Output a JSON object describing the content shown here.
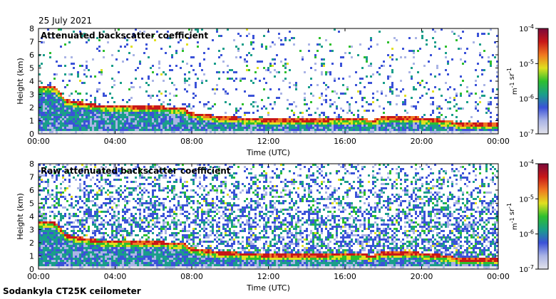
{
  "date": "25 July 2021",
  "site": "Sodankyla CT25K ceilometer",
  "colors": {
    "scale": [
      "#e3e3ea",
      "#aab4e6",
      "#3b52d8",
      "#1a9e8a",
      "#2ebf2e",
      "#e0e020",
      "#f07820",
      "#c81818",
      "#7a0a3a"
    ],
    "background": "#ffffff"
  },
  "chart_data": [
    {
      "type": "heatmap",
      "title": "Attenuated backscatter coefficient",
      "xlabel": "Time (UTC)",
      "ylabel": "Height (km)",
      "xlim": [
        0,
        24
      ],
      "ylim": [
        0,
        8
      ],
      "x_ticks": [
        0,
        4,
        8,
        12,
        16,
        20,
        24
      ],
      "x_tick_labels": [
        "00:00",
        "04:00",
        "08:00",
        "12:00",
        "16:00",
        "20:00",
        "00:00"
      ],
      "y_ticks": [
        0,
        1,
        2,
        3,
        4,
        5,
        6,
        7,
        8
      ],
      "y_tick_labels": [
        "0",
        "1",
        "2",
        "3",
        "4",
        "5",
        "6",
        "7",
        "8"
      ],
      "noise_level": 0.25,
      "layer_top_km": [
        [
          0,
          3.6
        ],
        [
          0.8,
          3.6
        ],
        [
          1.1,
          3.2
        ],
        [
          1.4,
          2.6
        ],
        [
          3,
          2.2
        ],
        [
          7.5,
          2.0
        ],
        [
          8,
          1.6
        ],
        [
          9.5,
          1.3
        ],
        [
          12.5,
          1.1
        ],
        [
          17,
          1.2
        ],
        [
          17.3,
          1.0
        ],
        [
          18,
          1.3
        ],
        [
          19.5,
          1.3
        ],
        [
          21.5,
          1.0
        ],
        [
          22,
          0.8
        ],
        [
          24,
          0.8
        ]
      ],
      "colorbar": {
        "label": "m-1 sr-1",
        "ticks": [
          "10-4",
          "10-5",
          "10-6",
          "10-7"
        ]
      }
    },
    {
      "type": "heatmap",
      "title": "Raw attenuated backscatter coefficient",
      "xlabel": "Time (UTC)",
      "ylabel": "Height (km)",
      "xlim": [
        0,
        24
      ],
      "ylim": [
        0,
        8
      ],
      "x_ticks": [
        0,
        4,
        8,
        12,
        16,
        20,
        24
      ],
      "x_tick_labels": [
        "00:00",
        "04:00",
        "08:00",
        "12:00",
        "16:00",
        "20:00",
        "00:00"
      ],
      "y_ticks": [
        0,
        1,
        2,
        3,
        4,
        5,
        6,
        7,
        8
      ],
      "y_tick_labels": [
        "0",
        "1",
        "2",
        "3",
        "4",
        "5",
        "6",
        "7",
        "8"
      ],
      "noise_level": 1.0,
      "layer_top_km": [
        [
          0,
          3.6
        ],
        [
          0.8,
          3.6
        ],
        [
          1.1,
          3.2
        ],
        [
          1.4,
          2.6
        ],
        [
          3,
          2.2
        ],
        [
          7.5,
          2.0
        ],
        [
          8,
          1.6
        ],
        [
          9.5,
          1.3
        ],
        [
          12.5,
          1.1
        ],
        [
          17,
          1.2
        ],
        [
          17.3,
          1.0
        ],
        [
          18,
          1.3
        ],
        [
          19.5,
          1.3
        ],
        [
          21.5,
          1.0
        ],
        [
          22,
          0.8
        ],
        [
          24,
          0.8
        ]
      ],
      "colorbar": {
        "label": "m-1 sr-1",
        "ticks": [
          "10-4",
          "10-5",
          "10-6",
          "10-7"
        ]
      }
    }
  ]
}
